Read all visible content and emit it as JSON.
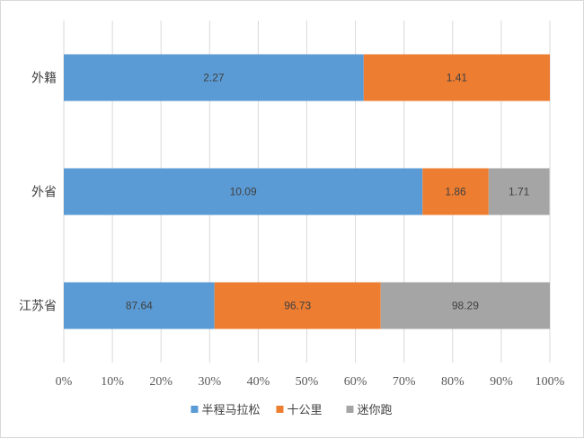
{
  "chart_data": {
    "type": "bar",
    "orientation": "horizontal",
    "stacked": "percent",
    "categories": [
      "外籍",
      "外省",
      "江苏省"
    ],
    "series": [
      {
        "name": "半程马拉松",
        "color": "#5b9bd5",
        "values": [
          2.27,
          10.09,
          87.64
        ],
        "share": [
          0.617,
          0.738,
          0.31
        ]
      },
      {
        "name": "十公里",
        "color": "#ed7d31",
        "values": [
          1.41,
          1.86,
          96.73
        ],
        "share": [
          0.383,
          0.136,
          0.342
        ]
      },
      {
        "name": "迷你跑",
        "color": "#a5a5a5",
        "values": [
          null,
          1.71,
          98.29
        ],
        "share": [
          0.0,
          0.125,
          0.348
        ]
      }
    ],
    "data_labels": [
      [
        "2.27",
        "1.41",
        ""
      ],
      [
        "10.09",
        "1.86",
        "1.71"
      ],
      [
        "87.64",
        "96.73",
        "98.29"
      ]
    ],
    "x_ticks": [
      "0%",
      "10%",
      "20%",
      "30%",
      "40%",
      "50%",
      "60%",
      "70%",
      "80%",
      "90%",
      "100%"
    ],
    "xlim": [
      0,
      1
    ],
    "grid": true,
    "legend": "bottom"
  }
}
